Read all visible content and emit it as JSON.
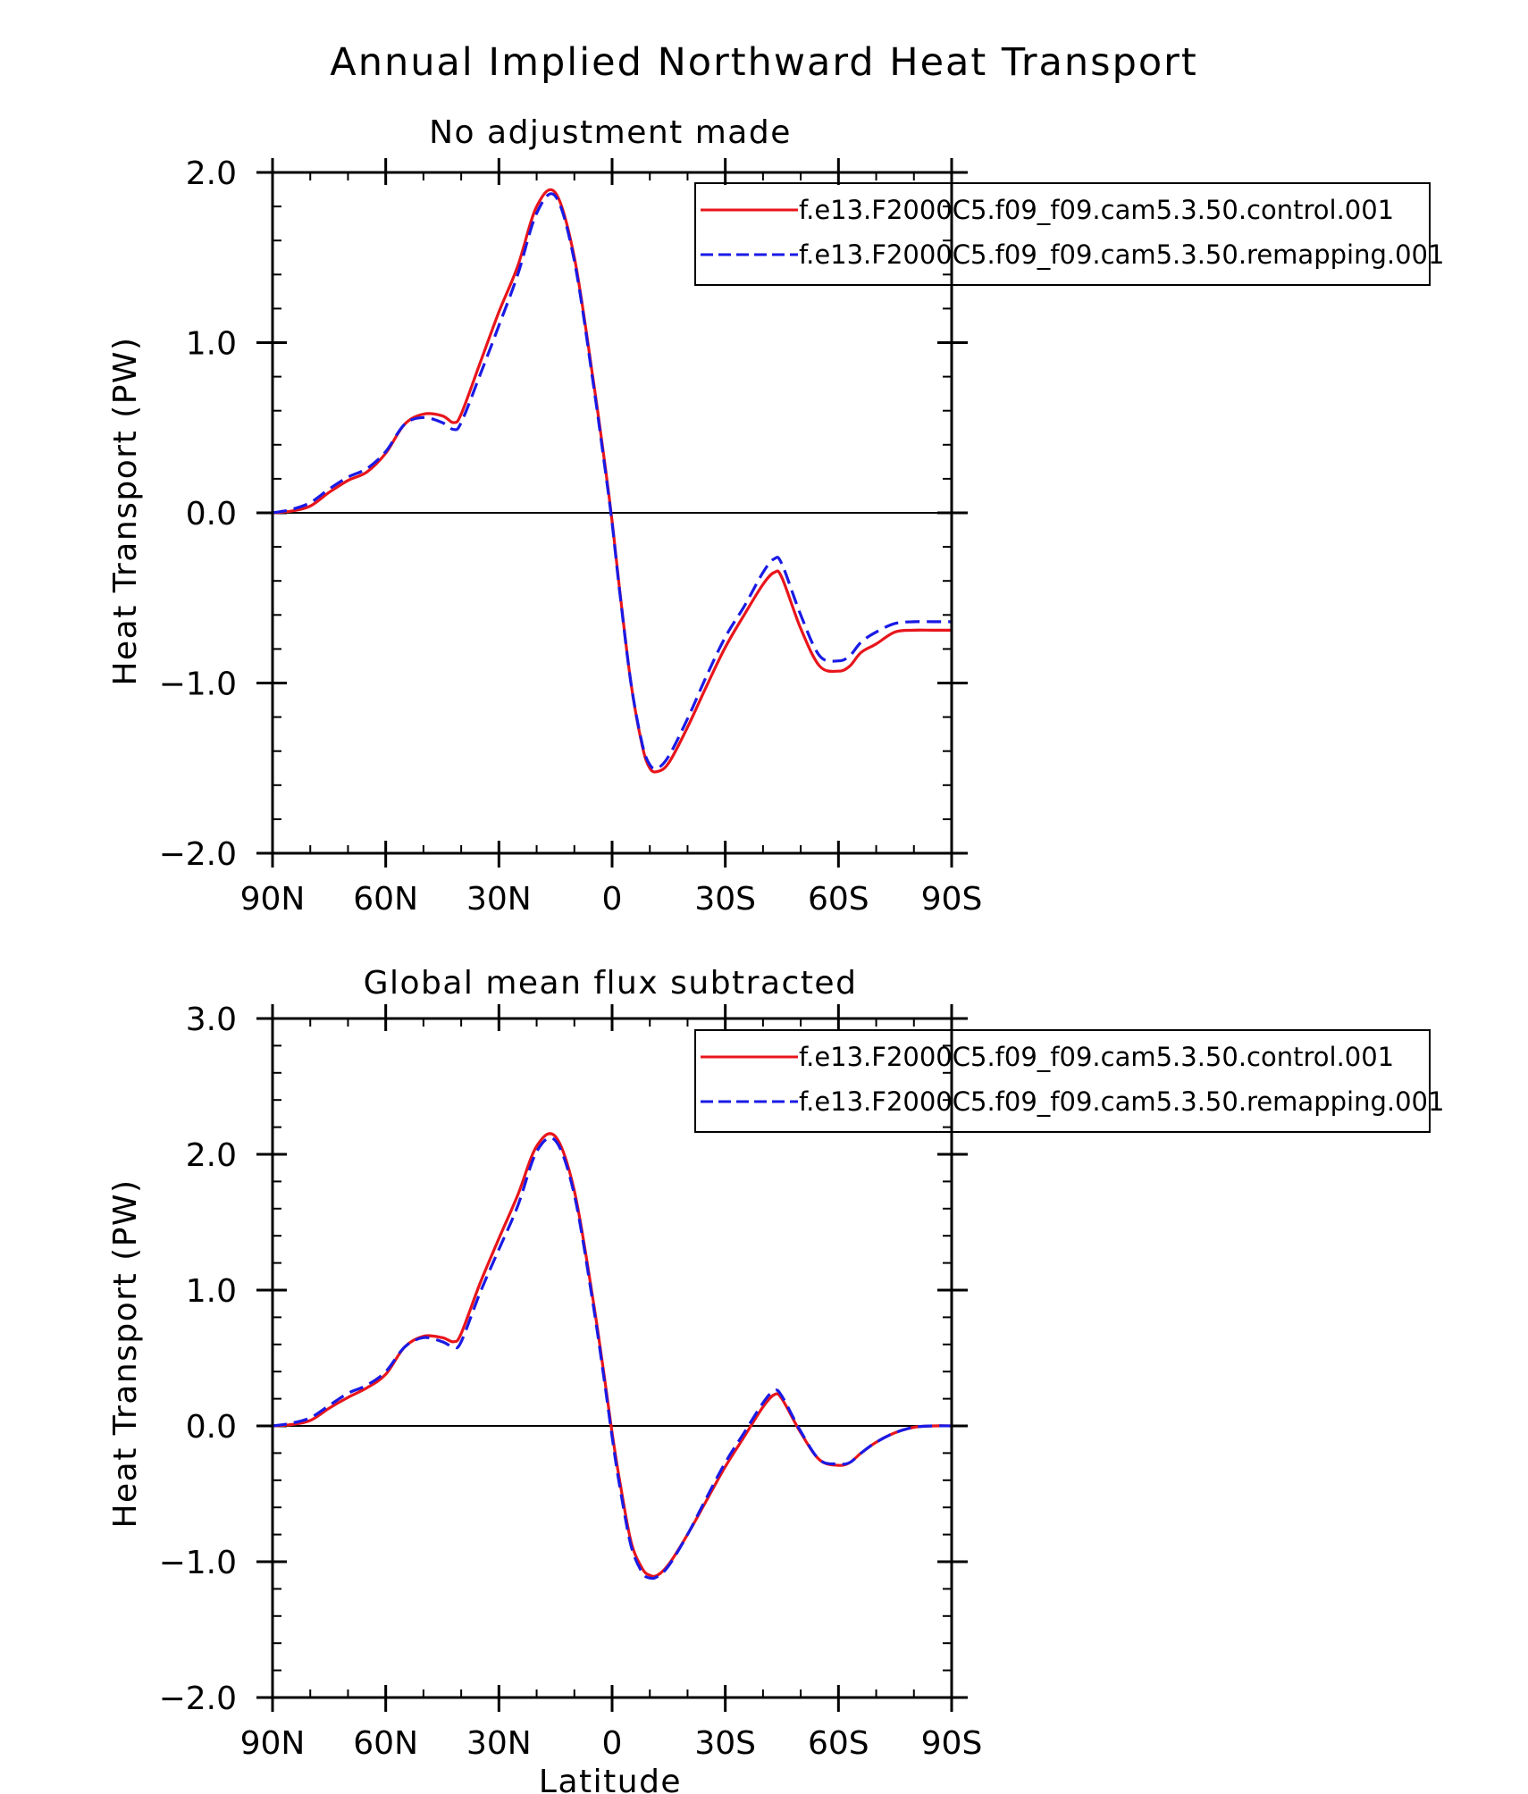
{
  "figure": {
    "title": "Annual Implied Northward Heat Transport",
    "colors": {
      "control": "#e8151b",
      "remapping": "#1a1ae6",
      "axis": "#000000"
    }
  },
  "chart_data": [
    {
      "type": "line",
      "title": "No adjustment made",
      "xlabel": "",
      "ylabel": "Heat Transport (PW)",
      "xlim": [
        90,
        -90
      ],
      "ylim": [
        -2.0,
        2.0
      ],
      "xticks": [
        90,
        60,
        30,
        0,
        -30,
        -60,
        -90
      ],
      "xtick_labels": [
        "90N",
        "60N",
        "30N",
        "0",
        "30S",
        "60S",
        "90S"
      ],
      "yticks": [
        -2.0,
        -1.0,
        0.0,
        1.0,
        2.0
      ],
      "ytick_labels": [
        "−2.0",
        "−1.0",
        "0.0",
        "1.0",
        "2.0"
      ],
      "zero_line": true,
      "legend_position": "top-right",
      "series": [
        {
          "name": "f.e13.F2000C5.f09_f09.cam5.3.50.control.001",
          "style": "solid",
          "color": "#e8151b",
          "x": [
            90,
            85,
            80,
            75,
            70,
            65,
            60,
            55,
            50,
            45,
            42,
            40,
            35,
            30,
            25,
            20,
            15,
            10,
            5,
            2,
            0,
            -2,
            -5,
            -8,
            -10,
            -12,
            -15,
            -20,
            -25,
            -30,
            -35,
            -40,
            -43,
            -45,
            -50,
            -55,
            -60,
            -63,
            -66,
            -70,
            -75,
            -80,
            -85,
            -90
          ],
          "y": [
            0.0,
            0.01,
            0.04,
            0.12,
            0.19,
            0.24,
            0.35,
            0.52,
            0.58,
            0.57,
            0.53,
            0.58,
            0.88,
            1.18,
            1.45,
            1.8,
            1.88,
            1.5,
            0.78,
            0.3,
            -0.05,
            -0.45,
            -1.0,
            -1.37,
            -1.5,
            -1.52,
            -1.47,
            -1.26,
            -1.02,
            -0.79,
            -0.6,
            -0.42,
            -0.35,
            -0.38,
            -0.68,
            -0.9,
            -0.93,
            -0.9,
            -0.82,
            -0.77,
            -0.7,
            -0.69,
            -0.69,
            -0.69
          ]
        },
        {
          "name": "f.e13.F2000C5.f09_f09.cam5.3.50.remapping.001",
          "style": "dashed",
          "color": "#1a1ae6",
          "x": [
            90,
            85,
            80,
            75,
            70,
            65,
            60,
            55,
            50,
            45,
            42,
            40,
            35,
            30,
            25,
            20,
            15,
            10,
            5,
            2,
            0,
            -2,
            -5,
            -8,
            -10,
            -12,
            -15,
            -20,
            -25,
            -30,
            -35,
            -40,
            -43,
            -45,
            -50,
            -55,
            -60,
            -63,
            -66,
            -70,
            -75,
            -80,
            -85,
            -90
          ],
          "y": [
            0.0,
            0.02,
            0.06,
            0.14,
            0.21,
            0.26,
            0.36,
            0.52,
            0.56,
            0.53,
            0.49,
            0.53,
            0.81,
            1.1,
            1.4,
            1.76,
            1.86,
            1.48,
            0.76,
            0.28,
            -0.06,
            -0.46,
            -1.0,
            -1.36,
            -1.48,
            -1.5,
            -1.43,
            -1.21,
            -0.96,
            -0.73,
            -0.55,
            -0.35,
            -0.27,
            -0.3,
            -0.6,
            -0.84,
            -0.87,
            -0.84,
            -0.76,
            -0.7,
            -0.65,
            -0.64,
            -0.64,
            -0.64
          ]
        }
      ]
    },
    {
      "type": "line",
      "title": "Global mean flux subtracted",
      "xlabel": "Latitude",
      "ylabel": "Heat Transport (PW)",
      "xlim": [
        90,
        -90
      ],
      "ylim": [
        -2.0,
        3.0
      ],
      "xticks": [
        90,
        60,
        30,
        0,
        -30,
        -60,
        -90
      ],
      "xtick_labels": [
        "90N",
        "60N",
        "30N",
        "0",
        "30S",
        "60S",
        "90S"
      ],
      "yticks": [
        -2.0,
        -1.0,
        0.0,
        1.0,
        2.0,
        3.0
      ],
      "ytick_labels": [
        "−2.0",
        "−1.0",
        "0.0",
        "1.0",
        "2.0",
        "3.0"
      ],
      "zero_line": true,
      "legend_position": "top-right",
      "series": [
        {
          "name": "f.e13.F2000C5.f09_f09.cam5.3.50.control.001",
          "style": "solid",
          "color": "#e8151b",
          "x": [
            90,
            85,
            80,
            75,
            70,
            65,
            60,
            55,
            50,
            45,
            42,
            40,
            35,
            30,
            25,
            20,
            15,
            10,
            5,
            2,
            0,
            -2,
            -5,
            -8,
            -10,
            -12,
            -15,
            -20,
            -25,
            -30,
            -35,
            -40,
            -43,
            -45,
            -50,
            -55,
            -60,
            -63,
            -66,
            -70,
            -75,
            -80,
            -85,
            -90
          ],
          "y": [
            0.0,
            0.01,
            0.04,
            0.13,
            0.21,
            0.28,
            0.38,
            0.58,
            0.66,
            0.65,
            0.62,
            0.68,
            1.05,
            1.38,
            1.7,
            2.06,
            2.13,
            1.73,
            0.92,
            0.35,
            -0.05,
            -0.4,
            -0.85,
            -1.05,
            -1.1,
            -1.1,
            -1.02,
            -0.8,
            -0.55,
            -0.3,
            -0.08,
            0.14,
            0.23,
            0.2,
            -0.05,
            -0.25,
            -0.29,
            -0.27,
            -0.2,
            -0.12,
            -0.05,
            -0.01,
            0.0,
            0.0
          ]
        },
        {
          "name": "f.e13.F2000C5.f09_f09.cam5.3.50.remapping.001",
          "style": "dashed",
          "color": "#1a1ae6",
          "x": [
            90,
            85,
            80,
            75,
            70,
            65,
            60,
            55,
            50,
            45,
            42,
            40,
            35,
            30,
            25,
            20,
            15,
            10,
            5,
            2,
            0,
            -2,
            -5,
            -8,
            -10,
            -12,
            -15,
            -20,
            -25,
            -30,
            -35,
            -40,
            -43,
            -45,
            -50,
            -55,
            -60,
            -63,
            -66,
            -70,
            -75,
            -80,
            -85,
            -90
          ],
          "y": [
            0.0,
            0.02,
            0.06,
            0.15,
            0.24,
            0.3,
            0.4,
            0.58,
            0.65,
            0.62,
            0.58,
            0.62,
            0.98,
            1.3,
            1.62,
            2.02,
            2.1,
            1.7,
            0.89,
            0.32,
            -0.08,
            -0.44,
            -0.88,
            -1.08,
            -1.12,
            -1.11,
            -1.03,
            -0.8,
            -0.53,
            -0.27,
            -0.05,
            0.17,
            0.26,
            0.22,
            -0.04,
            -0.25,
            -0.28,
            -0.27,
            -0.2,
            -0.12,
            -0.05,
            -0.01,
            0.0,
            0.0
          ]
        }
      ]
    }
  ]
}
